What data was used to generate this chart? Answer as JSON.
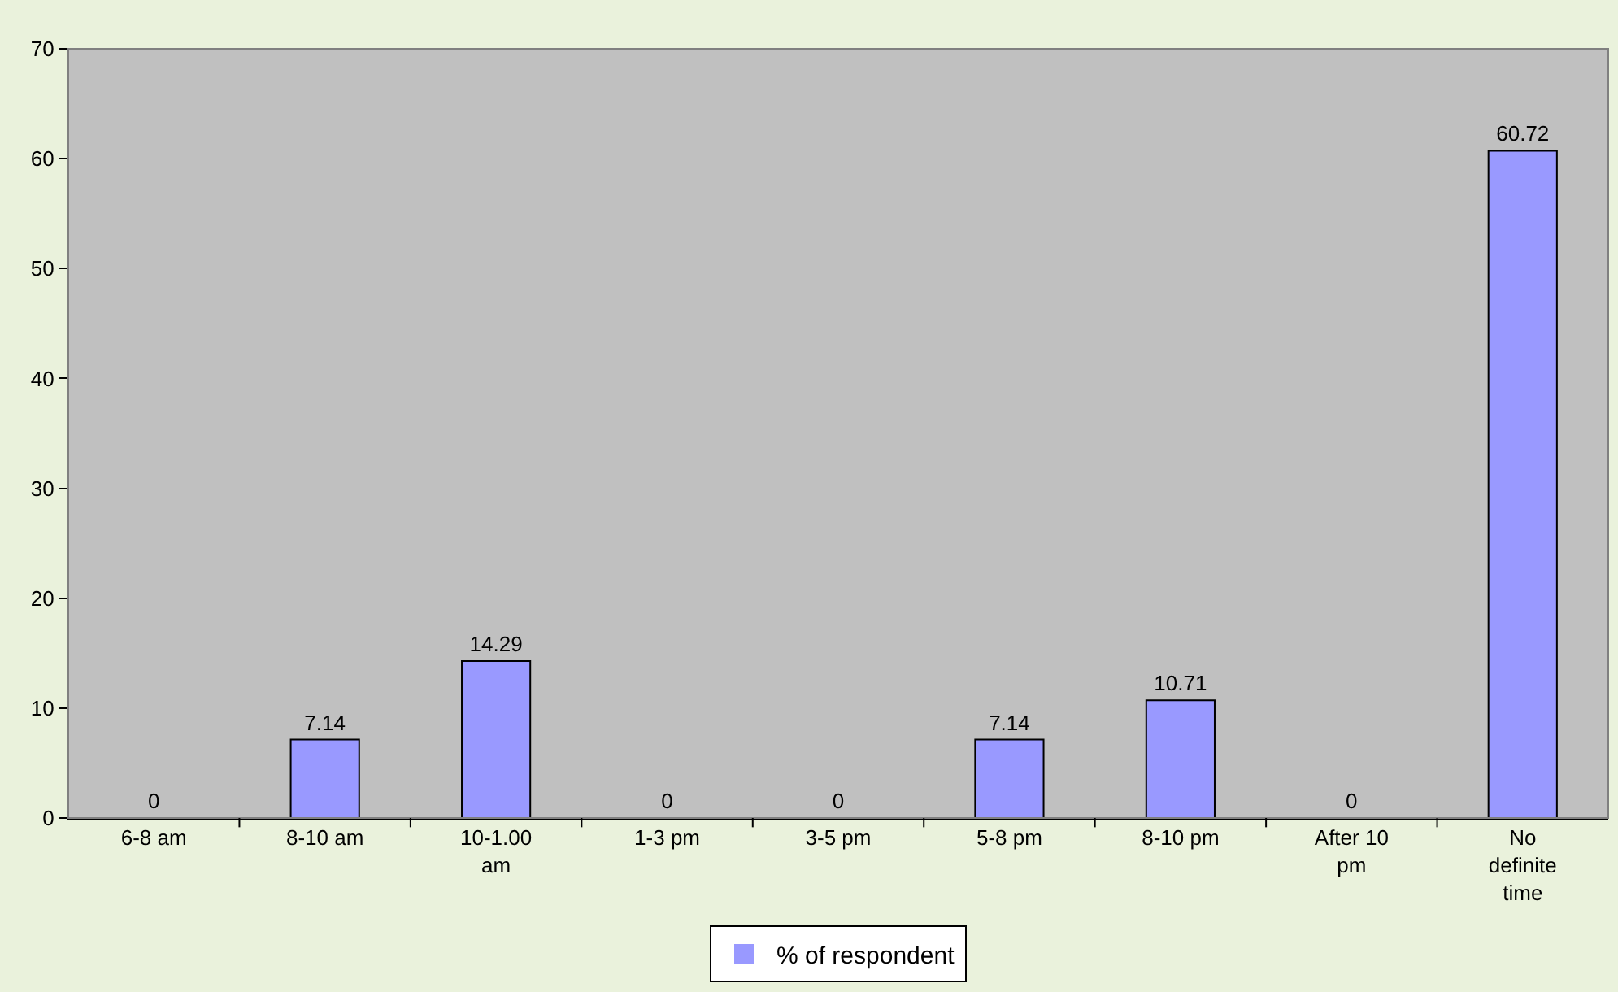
{
  "chart_data": {
    "type": "bar",
    "categories": [
      "6-8 am",
      "8-10 am",
      "10-1.00 am",
      "1-3 pm",
      "3-5 pm",
      "5-8 pm",
      "8-10 pm",
      "After 10 pm",
      "No definite time"
    ],
    "series": [
      {
        "name": "% of respondent",
        "color": "#9999ff",
        "values": [
          0,
          7.14,
          14.29,
          0,
          0,
          7.14,
          10.71,
          0,
          60.72
        ]
      }
    ],
    "ylim": [
      0,
      70
    ],
    "yticks": [
      0,
      10,
      20,
      30,
      40,
      50,
      60,
      70
    ],
    "grid": false,
    "legend": "bottom",
    "data_labels": true
  }
}
